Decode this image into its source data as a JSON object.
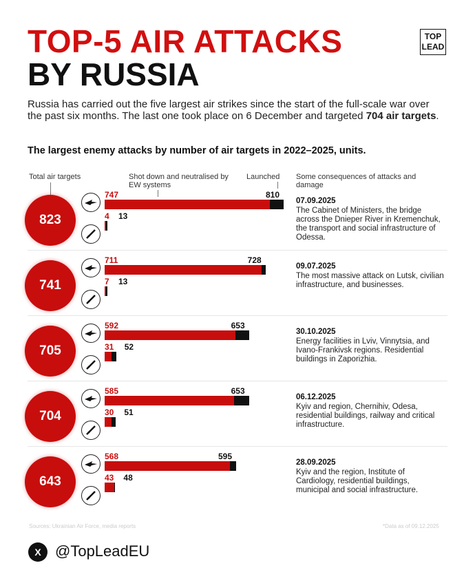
{
  "title_line1": "TOP-5 AIR ATTACKS",
  "title_line2": "BY RUSSIA",
  "logo": {
    "line1": "TOP",
    "line2": "LEAD"
  },
  "intro": {
    "before": "Russia has carried out the five largest air strikes since the start of the full-scale war over the past six months. The last one took place on 6 December and targeted ",
    "bold": "704 air targets",
    "after": "."
  },
  "chart_data": {
    "type": "bar",
    "title": "The largest enemy attacks by number of air targets in 2022–2025, units.",
    "headers": {
      "total": "Total air targets",
      "shot": "Shot down and neutralised by EW systems",
      "launched": "Launched",
      "consequences": "Some consequences of attacks and damage"
    },
    "max": 810,
    "rows": [
      {
        "total": 823,
        "drones": {
          "shot": 747,
          "launched": 810
        },
        "missiles": {
          "shot": 4,
          "launched": 13
        },
        "date": "07.09.2025",
        "text": "The Cabinet of Ministers, the bridge across the Dnieper River in Kremenchuk, the transport and social infrastructure of Odessa."
      },
      {
        "total": 741,
        "drones": {
          "shot": 711,
          "launched": 728
        },
        "missiles": {
          "shot": 7,
          "launched": 13
        },
        "date": "09.07.2025",
        "text": "The most massive attack on Lutsk, civilian infrastructure, and businesses."
      },
      {
        "total": 705,
        "drones": {
          "shot": 592,
          "launched": 653
        },
        "missiles": {
          "shot": 31,
          "launched": 52
        },
        "date": "30.10.2025",
        "text": "Energy facilities in Lviv, Vinnytsia, and Ivano-Frankivsk regions. Residential buildings in Zaporizhia."
      },
      {
        "total": 704,
        "drones": {
          "shot": 585,
          "launched": 653
        },
        "missiles": {
          "shot": 30,
          "launched": 51
        },
        "date": "06.12.2025",
        "text": "Kyiv and region, Chernihiv, Odesa, residential buildings, railway and critical infrastructure."
      },
      {
        "total": 643,
        "drones": {
          "shot": 568,
          "launched": 595
        },
        "missiles": {
          "shot": 43,
          "launched": 48
        },
        "date": "28.09.2025",
        "text": "Kyiv and the region, Institute of Cardiology, residential buildings, municipal and social infrastructure."
      }
    ],
    "colors": {
      "shot": "#c80d0d",
      "launched": "#111111"
    }
  },
  "footer": {
    "sources": "Sources: Ukrainian Air Force, media reports",
    "data_as_of": "*Data as of 09.12.2025",
    "x_icon": "X",
    "handle": "@TopLeadEU"
  }
}
